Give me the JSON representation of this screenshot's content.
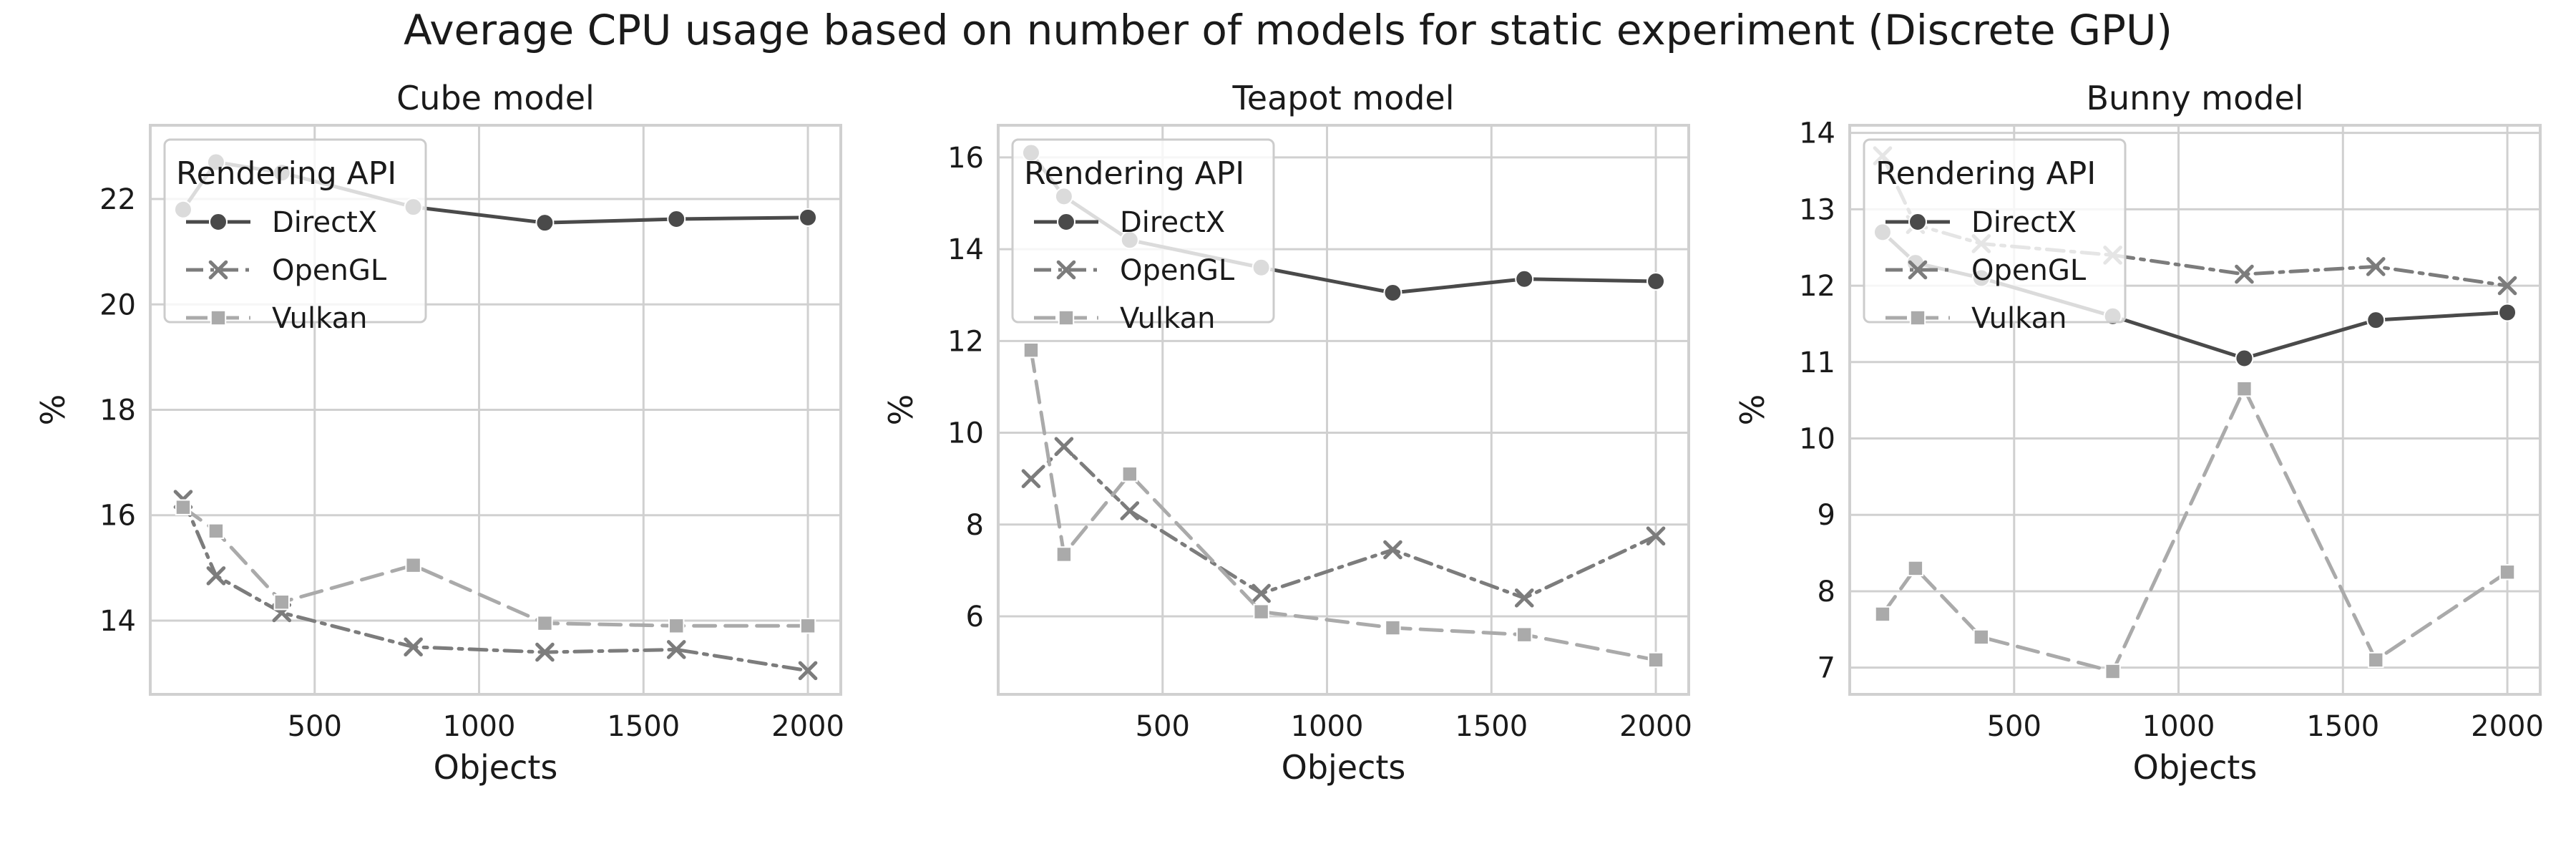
{
  "suptitle": "Average CPU usage based on number of models for static experiment (Discrete GPU)",
  "colors": {
    "DirectX": "#4a4a4a",
    "OpenGL": "#7c7c7c",
    "Vulkan": "#aaaaaa",
    "grid": "#d0d0d0",
    "spine": "#d0d0d0"
  },
  "chart_data": [
    {
      "type": "line",
      "title": "Cube model",
      "xlabel": "Objects",
      "ylabel": "%",
      "xlim": [
        0,
        2100
      ],
      "ylim": [
        12.6,
        23.4
      ],
      "xticks": [
        500,
        1000,
        1500,
        2000
      ],
      "yticks": [
        14,
        16,
        18,
        20,
        22
      ],
      "grid": true,
      "legend": {
        "title": "Rendering API",
        "position": "upper-left"
      },
      "x": [
        100,
        200,
        400,
        800,
        1200,
        1600,
        2000
      ],
      "series": [
        {
          "name": "DirectX",
          "values": [
            21.8,
            22.7,
            22.5,
            21.85,
            21.55,
            21.62,
            21.65
          ],
          "marker": "circle",
          "dash": "solid"
        },
        {
          "name": "OpenGL",
          "values": [
            16.3,
            14.85,
            14.15,
            13.5,
            13.4,
            13.45,
            13.05
          ],
          "marker": "x",
          "dash": "dashdot"
        },
        {
          "name": "Vulkan",
          "values": [
            16.15,
            15.7,
            14.35,
            15.05,
            13.95,
            13.9,
            13.9
          ],
          "marker": "square",
          "dash": "dashed"
        }
      ]
    },
    {
      "type": "line",
      "title": "Teapot model",
      "xlabel": "Objects",
      "ylabel": "%",
      "xlim": [
        0,
        2100
      ],
      "ylim": [
        4.3,
        16.7
      ],
      "xticks": [
        500,
        1000,
        1500,
        2000
      ],
      "yticks": [
        6,
        8,
        10,
        12,
        14,
        16
      ],
      "grid": true,
      "legend": {
        "title": "Rendering API",
        "position": "upper-left"
      },
      "x": [
        100,
        200,
        400,
        800,
        1200,
        1600,
        2000
      ],
      "series": [
        {
          "name": "DirectX",
          "values": [
            16.1,
            15.15,
            14.2,
            13.6,
            13.05,
            13.35,
            13.3
          ],
          "marker": "circle",
          "dash": "solid"
        },
        {
          "name": "OpenGL",
          "values": [
            9.0,
            9.7,
            8.3,
            6.5,
            7.45,
            6.4,
            7.75
          ],
          "marker": "x",
          "dash": "dashdot"
        },
        {
          "name": "Vulkan",
          "values": [
            11.8,
            7.35,
            9.1,
            6.1,
            5.75,
            5.6,
            5.05
          ],
          "marker": "square",
          "dash": "dashed"
        }
      ]
    },
    {
      "type": "line",
      "title": "Bunny model",
      "xlabel": "Objects",
      "ylabel": "%",
      "xlim": [
        0,
        2100
      ],
      "ylim": [
        6.65,
        14.1
      ],
      "xticks": [
        500,
        1000,
        1500,
        2000
      ],
      "yticks": [
        7,
        8,
        9,
        10,
        11,
        12,
        13,
        14
      ],
      "grid": true,
      "legend": {
        "title": "Rendering API",
        "position": "upper-left"
      },
      "x": [
        100,
        200,
        400,
        800,
        1200,
        1600,
        2000
      ],
      "series": [
        {
          "name": "DirectX",
          "values": [
            12.7,
            12.3,
            12.1,
            11.6,
            11.05,
            11.55,
            11.65
          ],
          "marker": "circle",
          "dash": "solid"
        },
        {
          "name": "OpenGL",
          "values": [
            13.7,
            12.8,
            12.55,
            12.4,
            12.15,
            12.25,
            12.0
          ],
          "marker": "x",
          "dash": "dashdot"
        },
        {
          "name": "Vulkan",
          "values": [
            7.7,
            8.3,
            7.4,
            6.95,
            10.65,
            7.1,
            8.25
          ],
          "marker": "square",
          "dash": "dashed"
        }
      ]
    }
  ]
}
